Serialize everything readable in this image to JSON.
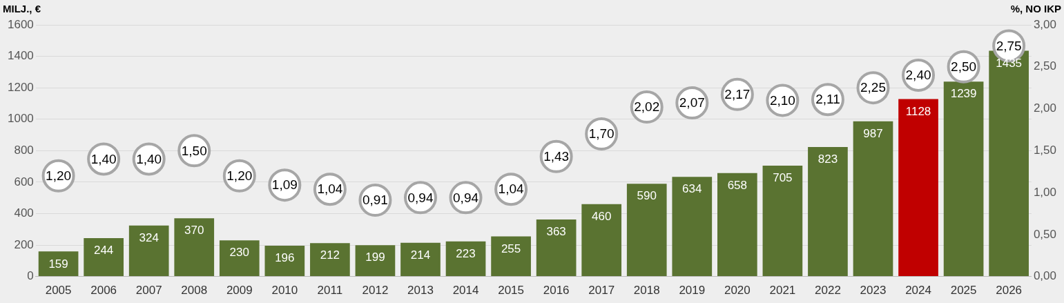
{
  "chart_data": {
    "type": "bar",
    "ylabel": "MILJ., €",
    "y2label": "%, NO IKP",
    "categories": [
      "2005",
      "2006",
      "2007",
      "2008",
      "2009",
      "2010",
      "2011",
      "2012",
      "2013",
      "2014",
      "2015",
      "2016",
      "2017",
      "2018",
      "2019",
      "2020",
      "2021",
      "2022",
      "2023",
      "2024",
      "2025",
      "2026"
    ],
    "series": [
      {
        "colors": [
          "#5a7331",
          "#5a7331",
          "#5a7331",
          "#5a7331",
          "#5a7331",
          "#5a7331",
          "#5a7331",
          "#5a7331",
          "#5a7331",
          "#5a7331",
          "#5a7331",
          "#5a7331",
          "#5a7331",
          "#5a7331",
          "#5a7331",
          "#5a7331",
          "#5a7331",
          "#5a7331",
          "#5a7331",
          "#c00000",
          "#5a7331",
          "#5a7331"
        ],
        "values": [
          159,
          244,
          324,
          370,
          230,
          196,
          212,
          199,
          214,
          223,
          255,
          363,
          460,
          590,
          634,
          658,
          705,
          823,
          987,
          1128,
          1239,
          1435
        ]
      },
      {
        "type": "scatter",
        "axis": "y2",
        "color": "#a6a6a6",
        "marker": "circle",
        "values": [
          1.2,
          1.4,
          1.4,
          1.5,
          1.2,
          1.09,
          1.04,
          0.91,
          0.94,
          0.94,
          1.04,
          1.43,
          1.7,
          2.02,
          2.07,
          2.17,
          2.1,
          2.11,
          2.25,
          2.4,
          2.5,
          2.75
        ],
        "value_labels": [
          "1,20",
          "1,40",
          "1,40",
          "1,50",
          "1,20",
          "1,09",
          "1,04",
          "0,91",
          "0,94",
          "0,94",
          "1,04",
          "1,43",
          "1,70",
          "2,02",
          "2,07",
          "2,17",
          "2,10",
          "2,11",
          "2,25",
          "2,40",
          "2,50",
          "2,75"
        ]
      }
    ],
    "data_labels": true,
    "ylim": [
      0,
      1600
    ],
    "yticks": [
      0,
      200,
      400,
      600,
      800,
      1000,
      1200,
      1400,
      1600
    ],
    "y2lim": [
      0,
      3
    ],
    "y2ticks": [
      {
        "value": 0,
        "label": "0,00"
      },
      {
        "value": 0.5,
        "label": "0,50"
      },
      {
        "value": 1,
        "label": "1,00"
      },
      {
        "value": 1.5,
        "label": "1,50"
      },
      {
        "value": 2,
        "label": "2,00"
      },
      {
        "value": 2.5,
        "label": "2,50"
      },
      {
        "value": 3,
        "label": "3,00"
      }
    ],
    "grid": "y",
    "legend": false
  }
}
